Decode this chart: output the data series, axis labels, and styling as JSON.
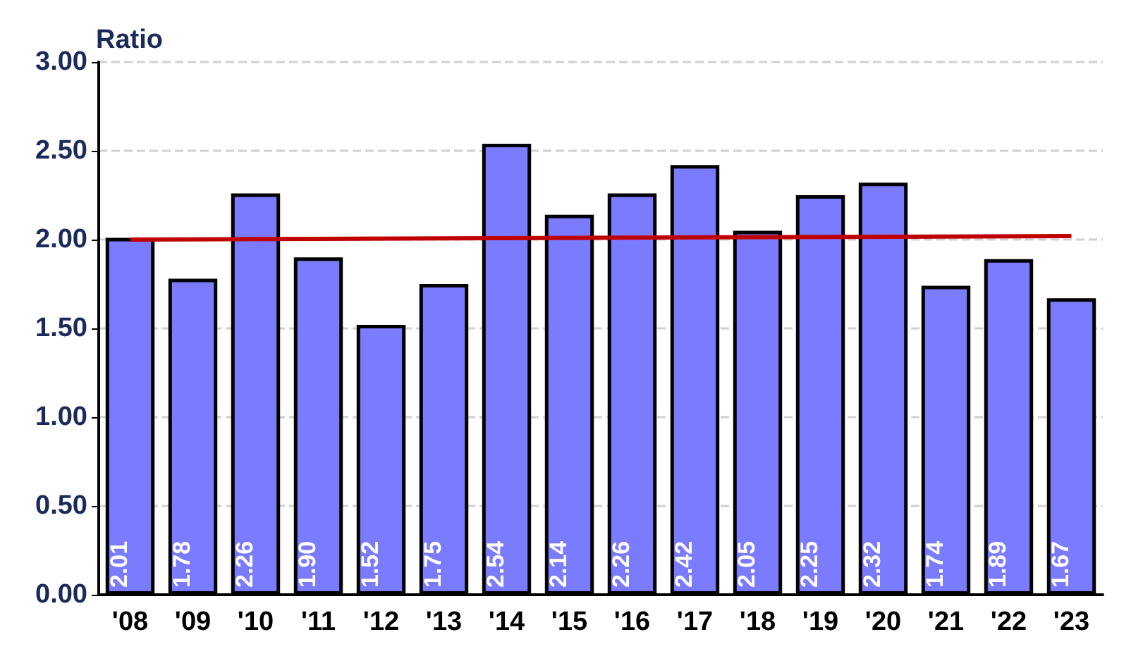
{
  "chart_data": {
    "type": "bar",
    "ylabel": "Ratio",
    "categories": [
      "'08",
      "'09",
      "'10",
      "'11",
      "'12",
      "'13",
      "'14",
      "'15",
      "'16",
      "'17",
      "'18",
      "'19",
      "'20",
      "'21",
      "'22",
      "'23"
    ],
    "series": [
      {
        "color": "#7b7bff",
        "values": [
          2.01,
          1.78,
          2.26,
          1.9,
          1.52,
          1.75,
          2.54,
          2.14,
          2.26,
          2.42,
          2.05,
          2.25,
          2.32,
          1.74,
          1.89,
          1.67
        ],
        "value_labels": [
          "2.01",
          "1.78",
          "2.26",
          "1.90",
          "1.52",
          "1.75",
          "2.54",
          "2.14",
          "2.26",
          "2.42",
          "2.05",
          "2.25",
          "2.32",
          "1.74",
          "1.89",
          "1.67"
        ]
      },
      {
        "type": "line",
        "color": "#c00000",
        "x": [
          "'08",
          "'23"
        ],
        "values": [
          2.0,
          2.02
        ],
        "marker": "none"
      }
    ],
    "ylim": [
      0,
      3
    ],
    "yticks": [
      {
        "value": 0,
        "label": "0.00"
      },
      {
        "value": 0.5,
        "label": "0.50"
      },
      {
        "value": 1,
        "label": "1.00"
      },
      {
        "value": 1.5,
        "label": "1.50"
      },
      {
        "value": 2,
        "label": "2.00"
      },
      {
        "value": 2.5,
        "label": "2.50"
      },
      {
        "value": 3,
        "label": "3.00"
      }
    ],
    "grid": "y"
  }
}
